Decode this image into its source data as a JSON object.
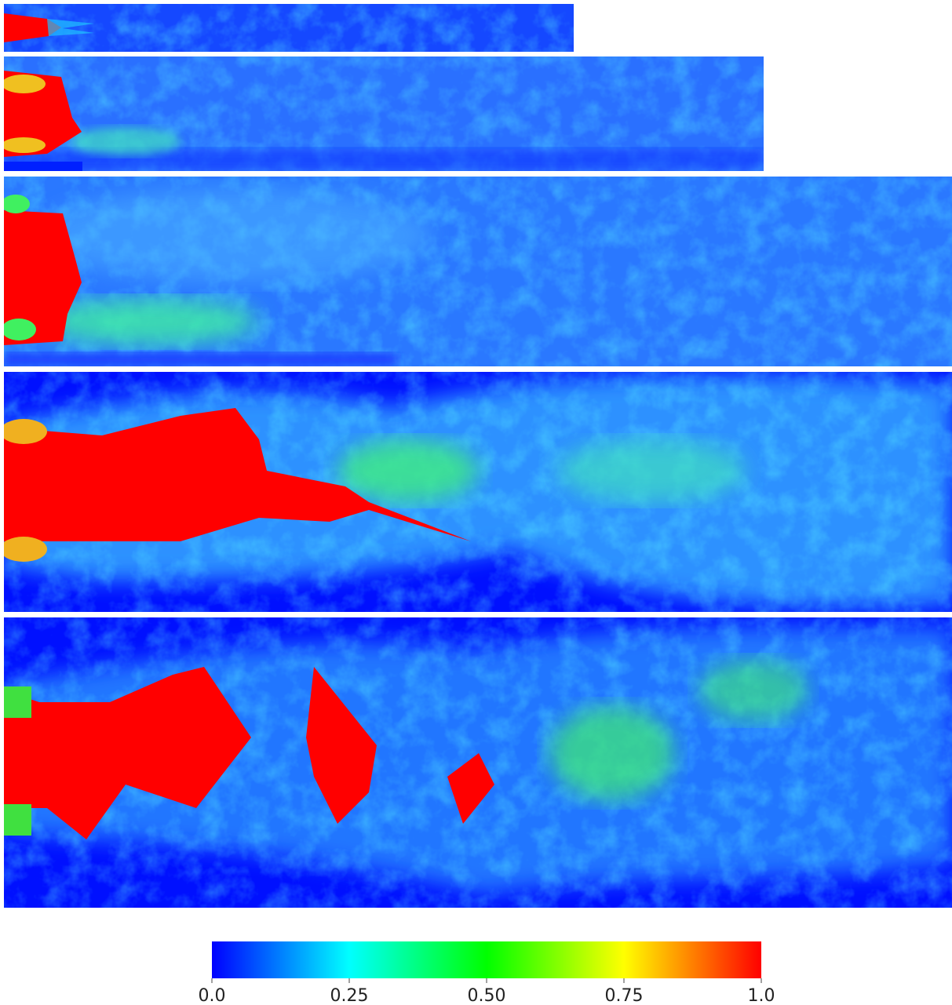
{
  "colorbar": {
    "range": [
      0,
      1
    ],
    "colors": [
      "#0000ff",
      "#00ffff",
      "#00ff00",
      "#ffff00",
      "#ff0000"
    ],
    "ticks": [
      {
        "value": 0,
        "label": "0.0"
      },
      0.25,
      {
        "value": 0.5,
        "label": "0.50"
      },
      0.75,
      {
        "value": 1,
        "label": "1.0"
      }
    ]
  }
}
